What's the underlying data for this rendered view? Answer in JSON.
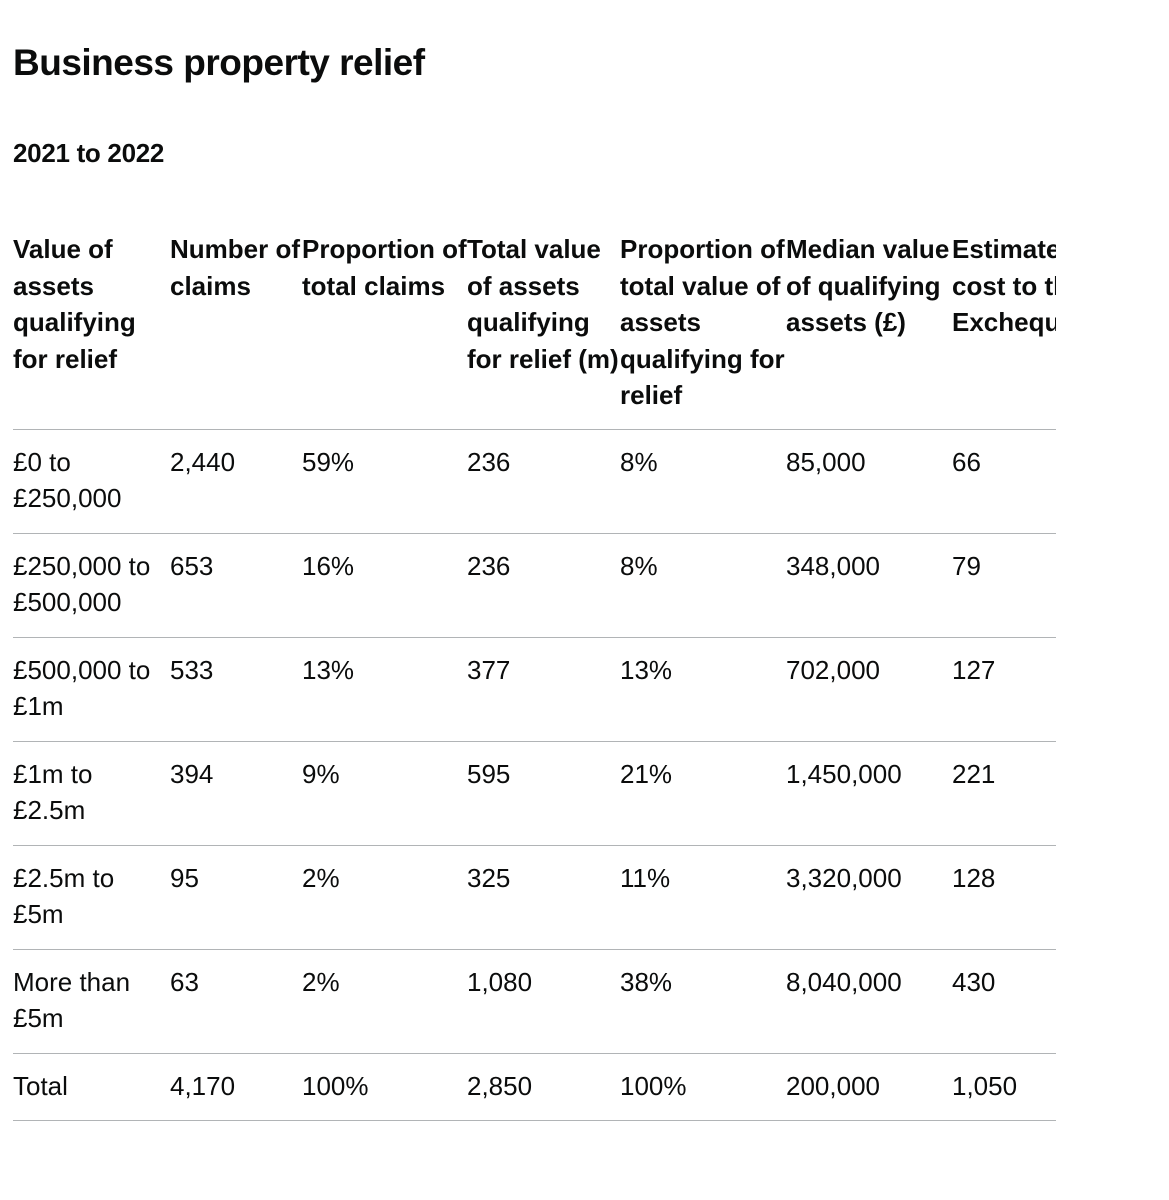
{
  "header": {
    "title": "Business property relief",
    "period": "2021 to 2022"
  },
  "table": {
    "columns": [
      "Value of assets qualifying for relief",
      "Number of claims",
      "Proportion of total claims",
      "Total value of assets qualifying for relief (m)",
      "Proportion of total value of assets qualifying for relief",
      "Median value of qualifying assets (£)",
      "Estimated tax cost to the Exchequer (£m)"
    ],
    "rows": [
      [
        "£0 to £250,000",
        "2,440",
        "59%",
        "236",
        "8%",
        "85,000",
        "66"
      ],
      [
        "£250,000 to £500,000",
        "653",
        "16%",
        "236",
        "8%",
        "348,000",
        "79"
      ],
      [
        "£500,000 to £1m",
        "533",
        "13%",
        "377",
        "13%",
        "702,000",
        "127"
      ],
      [
        "£1m to £2.5m",
        "394",
        "9%",
        "595",
        "21%",
        "1,450,000",
        "221"
      ],
      [
        "£2.5m to £5m",
        "95",
        "2%",
        "325",
        "11%",
        "3,320,000",
        "128"
      ],
      [
        "More than £5m",
        "63",
        "2%",
        "1,080",
        "38%",
        "8,040,000",
        "430"
      ],
      [
        "Total",
        "4,170",
        "100%",
        "2,850",
        "100%",
        "200,000",
        "1,050"
      ]
    ]
  }
}
